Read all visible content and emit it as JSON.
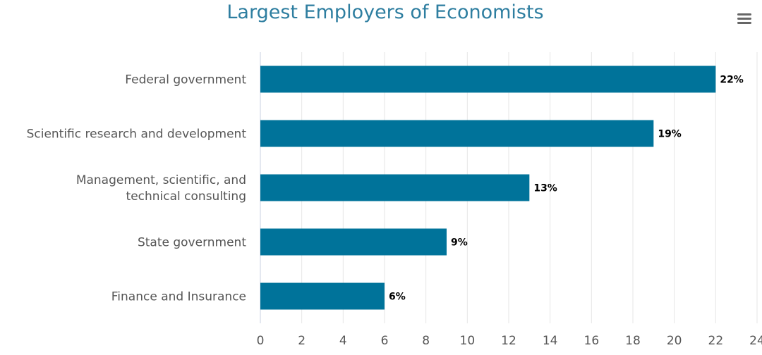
{
  "chart_data": {
    "type": "bar",
    "orientation": "horizontal",
    "title": "Largest Employers of Economists",
    "categories": [
      "Federal government",
      "Scientific research and development",
      "Management, scientific, and technical consulting",
      "State government",
      "Finance and Insurance"
    ],
    "category_lines": [
      [
        "Federal government"
      ],
      [
        "Scientific research and development"
      ],
      [
        "Management, scientific, and",
        "technical consulting"
      ],
      [
        "State government"
      ],
      [
        "Finance and Insurance"
      ]
    ],
    "values": [
      22,
      19,
      13,
      9,
      6
    ],
    "data_labels": [
      "22%",
      "19%",
      "13%",
      "9%",
      "6%"
    ],
    "xlim": [
      0,
      24
    ],
    "x_ticks": [
      0,
      2,
      4,
      6,
      8,
      10,
      12,
      14,
      16,
      18,
      20,
      22,
      24
    ],
    "xlabel": "",
    "ylabel": "",
    "grid": true,
    "legend": "none",
    "bar_color": "#00739a"
  },
  "toolbar": {
    "menu_icon": "hamburger-menu-icon"
  }
}
